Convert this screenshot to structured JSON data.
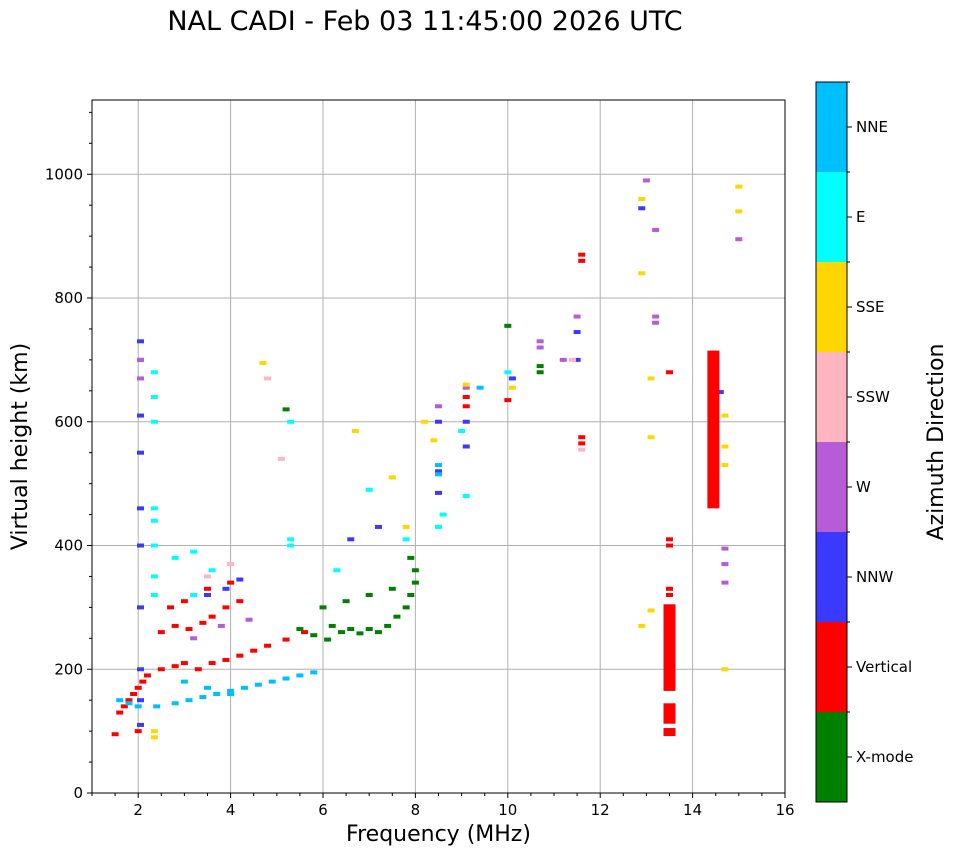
{
  "chart_data": {
    "type": "scatter",
    "title": "NAL CADI - Feb 03 11:45:00 2026 UTC",
    "xlabel": "Frequency (MHz)",
    "ylabel": "Virtual height (km)",
    "xlim": [
      1,
      16
    ],
    "ylim": [
      0,
      1120
    ],
    "xticks": [
      2,
      4,
      6,
      8,
      10,
      12,
      14,
      16
    ],
    "yticks": [
      0,
      200,
      400,
      600,
      800,
      1000
    ],
    "grid": true,
    "colorbar": {
      "label": "Azimuth Direction",
      "categories": [
        {
          "name": "X-mode",
          "color": "#008000"
        },
        {
          "name": "Vertical",
          "color": "#ff0000"
        },
        {
          "name": "NNW",
          "color": "#3a3aff"
        },
        {
          "name": "W",
          "color": "#b65cd6"
        },
        {
          "name": "SSW",
          "color": "#ffb6c1"
        },
        {
          "name": "SSE",
          "color": "#ffd700"
        },
        {
          "name": "E",
          "color": "#00ffff"
        },
        {
          "name": "NNE",
          "color": "#00bfff"
        }
      ]
    },
    "series": [
      {
        "name": "Vertical",
        "points": [
          [
            1.6,
            130
          ],
          [
            1.7,
            140
          ],
          [
            1.8,
            150
          ],
          [
            1.9,
            160
          ],
          [
            2.0,
            170
          ],
          [
            2.1,
            180
          ],
          [
            2.2,
            190
          ],
          [
            2.5,
            200
          ],
          [
            2.8,
            205
          ],
          [
            3.0,
            210
          ],
          [
            3.3,
            200
          ],
          [
            3.6,
            210
          ],
          [
            3.9,
            215
          ],
          [
            4.2,
            222
          ],
          [
            4.5,
            230
          ],
          [
            4.8,
            238
          ],
          [
            5.2,
            248
          ],
          [
            5.6,
            260
          ],
          [
            2.5,
            260
          ],
          [
            2.8,
            270
          ],
          [
            3.1,
            265
          ],
          [
            3.4,
            275
          ],
          [
            3.6,
            285
          ],
          [
            3.9,
            300
          ],
          [
            4.2,
            310
          ],
          [
            2.7,
            300
          ],
          [
            3.0,
            310
          ],
          [
            3.5,
            330
          ],
          [
            4.0,
            340
          ],
          [
            1.5,
            95
          ],
          [
            2.0,
            100
          ],
          [
            9.1,
            640
          ],
          [
            9.1,
            625
          ],
          [
            10.0,
            635
          ],
          [
            11.6,
            860
          ],
          [
            11.6,
            870
          ],
          [
            11.6,
            575
          ],
          [
            11.6,
            565
          ],
          [
            13.5,
            680
          ],
          [
            13.5,
            410
          ],
          [
            13.5,
            400
          ],
          [
            13.5,
            330
          ],
          [
            13.5,
            320
          ]
        ]
      },
      {
        "name": "X-mode",
        "points": [
          [
            6.2,
            270
          ],
          [
            6.4,
            260
          ],
          [
            6.6,
            265
          ],
          [
            6.8,
            258
          ],
          [
            7.0,
            265
          ],
          [
            7.2,
            260
          ],
          [
            7.4,
            270
          ],
          [
            7.6,
            285
          ],
          [
            7.8,
            300
          ],
          [
            7.9,
            320
          ],
          [
            8.0,
            340
          ],
          [
            8.0,
            360
          ],
          [
            7.9,
            380
          ],
          [
            6.0,
            300
          ],
          [
            6.5,
            310
          ],
          [
            7.0,
            320
          ],
          [
            7.5,
            330
          ],
          [
            5.5,
            265
          ],
          [
            5.8,
            255
          ],
          [
            6.1,
            248
          ],
          [
            5.2,
            620
          ],
          [
            10.0,
            755
          ],
          [
            10.7,
            690
          ],
          [
            10.7,
            680
          ]
        ]
      },
      {
        "name": "NNW",
        "points": [
          [
            2.05,
            110
          ],
          [
            2.05,
            150
          ],
          [
            2.05,
            200
          ],
          [
            2.05,
            300
          ],
          [
            2.05,
            400
          ],
          [
            2.05,
            460
          ],
          [
            2.05,
            550
          ],
          [
            2.05,
            610
          ],
          [
            2.05,
            700
          ],
          [
            2.05,
            730
          ],
          [
            3.5,
            320
          ],
          [
            3.9,
            330
          ],
          [
            4.2,
            345
          ],
          [
            8.5,
            485
          ],
          [
            8.5,
            520
          ],
          [
            8.5,
            600
          ],
          [
            9.1,
            560
          ],
          [
            9.1,
            600
          ],
          [
            10.1,
            670
          ],
          [
            11.5,
            700
          ],
          [
            11.5,
            745
          ],
          [
            12.9,
            945
          ],
          [
            14.6,
            648
          ],
          [
            6.6,
            410
          ],
          [
            7.2,
            430
          ]
        ]
      },
      {
        "name": "W",
        "points": [
          [
            2.05,
            670
          ],
          [
            2.05,
            700
          ],
          [
            3.2,
            250
          ],
          [
            3.8,
            270
          ],
          [
            4.4,
            280
          ],
          [
            8.5,
            625
          ],
          [
            9.1,
            655
          ],
          [
            10.7,
            730
          ],
          [
            10.7,
            720
          ],
          [
            11.2,
            700
          ],
          [
            11.5,
            770
          ],
          [
            13.0,
            990
          ],
          [
            13.2,
            910
          ],
          [
            13.2,
            770
          ],
          [
            13.2,
            760
          ],
          [
            14.7,
            395
          ],
          [
            14.7,
            370
          ],
          [
            14.7,
            340
          ],
          [
            15.0,
            895
          ]
        ]
      },
      {
        "name": "SSW",
        "points": [
          [
            4.8,
            670
          ],
          [
            5.1,
            540
          ],
          [
            3.5,
            350
          ],
          [
            4.0,
            370
          ],
          [
            11.6,
            555
          ],
          [
            11.4,
            700
          ]
        ]
      },
      {
        "name": "SSE",
        "points": [
          [
            2.35,
            100
          ],
          [
            2.35,
            90
          ],
          [
            4.7,
            695
          ],
          [
            6.7,
            585
          ],
          [
            8.2,
            600
          ],
          [
            8.4,
            570
          ],
          [
            9.1,
            660
          ],
          [
            10.1,
            655
          ],
          [
            12.9,
            960
          ],
          [
            12.9,
            840
          ],
          [
            13.1,
            670
          ],
          [
            13.1,
            575
          ],
          [
            12.9,
            270
          ],
          [
            13.1,
            295
          ],
          [
            14.7,
            610
          ],
          [
            14.7,
            560
          ],
          [
            14.7,
            530
          ],
          [
            14.7,
            200
          ],
          [
            14.4,
            520
          ],
          [
            15.0,
            980
          ],
          [
            15.0,
            940
          ],
          [
            7.5,
            510
          ],
          [
            7.8,
            430
          ]
        ]
      },
      {
        "name": "E",
        "points": [
          [
            2.35,
            600
          ],
          [
            2.35,
            640
          ],
          [
            2.35,
            680
          ],
          [
            2.35,
            400
          ],
          [
            2.35,
            440
          ],
          [
            2.35,
            460
          ],
          [
            2.35,
            350
          ],
          [
            2.35,
            320
          ],
          [
            2.8,
            380
          ],
          [
            3.2,
            390
          ],
          [
            3.6,
            360
          ],
          [
            3.2,
            320
          ],
          [
            8.5,
            430
          ],
          [
            8.6,
            450
          ],
          [
            9.0,
            585
          ],
          [
            9.1,
            480
          ],
          [
            10.0,
            680
          ],
          [
            5.3,
            410
          ],
          [
            5.3,
            400
          ],
          [
            5.3,
            600
          ],
          [
            6.3,
            360
          ],
          [
            7.0,
            490
          ],
          [
            7.8,
            410
          ]
        ]
      },
      {
        "name": "NNE",
        "points": [
          [
            1.6,
            150
          ],
          [
            1.8,
            145
          ],
          [
            2.0,
            140
          ],
          [
            2.4,
            140
          ],
          [
            2.8,
            145
          ],
          [
            3.1,
            150
          ],
          [
            3.4,
            155
          ],
          [
            3.7,
            160
          ],
          [
            4.0,
            165
          ],
          [
            4.3,
            170
          ],
          [
            4.6,
            175
          ],
          [
            4.9,
            180
          ],
          [
            5.2,
            185
          ],
          [
            5.5,
            190
          ],
          [
            5.8,
            195
          ],
          [
            3.0,
            180
          ],
          [
            3.5,
            170
          ],
          [
            4.0,
            160
          ],
          [
            8.5,
            530
          ],
          [
            8.5,
            515
          ],
          [
            9.4,
            655
          ]
        ]
      }
    ],
    "bars": [
      {
        "name": "Vertical",
        "x": 14.45,
        "y0": 460,
        "y1": 715
      },
      {
        "name": "Vertical",
        "x": 13.5,
        "y0": 165,
        "y1": 305
      },
      {
        "name": "Vertical",
        "x": 13.5,
        "y0": 112,
        "y1": 145
      },
      {
        "name": "Vertical",
        "x": 13.5,
        "y0": 92,
        "y1": 105
      }
    ]
  }
}
